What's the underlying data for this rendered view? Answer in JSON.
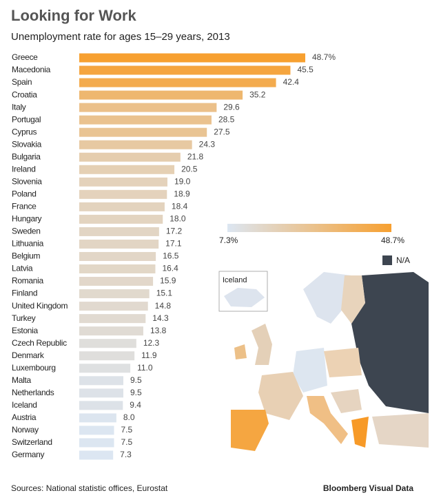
{
  "chart_data": {
    "type": "bar",
    "orientation": "horizontal",
    "title": "Looking for Work",
    "subtitle": "Unemployment rate for ages 15–29 years, 2013",
    "categories": [
      "Greece",
      "Macedonia",
      "Spain",
      "Croatia",
      "Italy",
      "Portugal",
      "Cyprus",
      "Slovakia",
      "Bulgaria",
      "Ireland",
      "Slovenia",
      "Poland",
      "France",
      "Hungary",
      "Sweden",
      "Lithuania",
      "Belgium",
      "Latvia",
      "Romania",
      "Finland",
      "United Kingdom",
      "Turkey",
      "Estonia",
      "Czech Republic",
      "Denmark",
      "Luxembourg",
      "Malta",
      "Netherlands",
      "Iceland",
      "Austria",
      "Norway",
      "Switzerland",
      "Germany"
    ],
    "values": [
      48.7,
      45.5,
      42.4,
      35.2,
      29.6,
      28.5,
      27.5,
      24.3,
      21.8,
      20.5,
      19.0,
      18.9,
      18.4,
      18.0,
      17.2,
      17.1,
      16.5,
      16.4,
      15.9,
      15.1,
      14.8,
      14.3,
      13.8,
      12.3,
      11.9,
      11.0,
      9.5,
      9.5,
      9.4,
      8.0,
      7.5,
      7.5,
      7.3
    ],
    "value_labels": [
      "48.7%",
      "45.5",
      "42.4",
      "35.2",
      "29.6",
      "28.5",
      "27.5",
      "24.3",
      "21.8",
      "20.5",
      "19.0",
      "18.9",
      "18.4",
      "18.0",
      "17.2",
      "17.1",
      "16.5",
      "16.4",
      "15.9",
      "15.1",
      "14.8",
      "14.3",
      "13.8",
      "12.3",
      "11.9",
      "11.0",
      "9.5",
      "9.5",
      "9.4",
      "8.0",
      "7.5",
      "7.5",
      "7.3"
    ],
    "color_scale": {
      "colors": [
        "#dce6f2",
        "#f7a030"
      ],
      "ticks": [
        {
          "value": 7.3,
          "label": "7.3%"
        },
        {
          "value": 48.7,
          "label": "48.7%"
        }
      ]
    },
    "na_color": "#3d4550",
    "na_label": "N/A",
    "inset_label": "Iceland",
    "source": "Sources: National statistic offices, Eurostat",
    "brand": "Bloomberg Visual Data"
  }
}
